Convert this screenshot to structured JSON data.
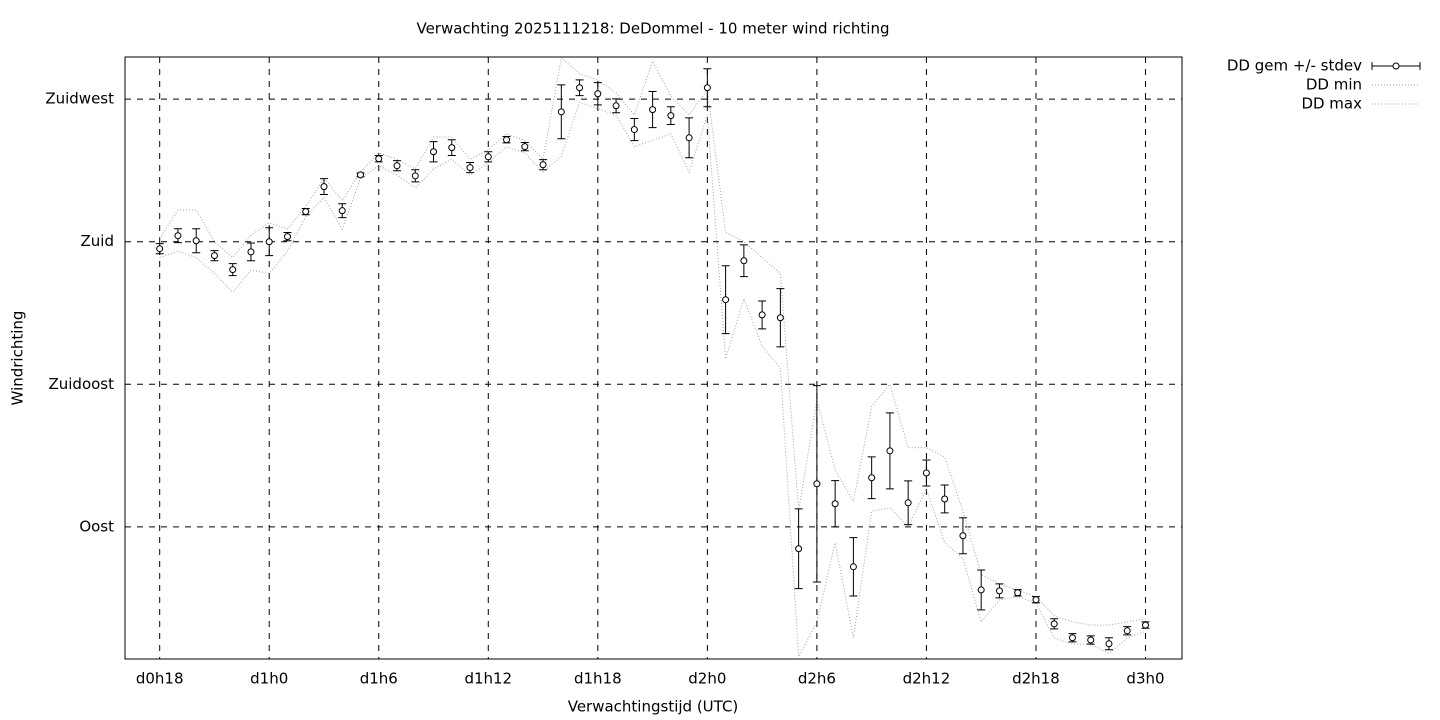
{
  "chart_data": {
    "type": "errorbar",
    "title": "Verwachting 2025111218: DeDommel - 10 meter wind richting",
    "x_label": "Verwachtingstijd (UTC)",
    "y_label": "Windrichting",
    "x": [
      18,
      19,
      20,
      21,
      22,
      23,
      24,
      25,
      26,
      27,
      28,
      29,
      30,
      31,
      32,
      33,
      34,
      35,
      36,
      37,
      38,
      39,
      40,
      41,
      42,
      43,
      44,
      45,
      46,
      47,
      48,
      49,
      50,
      51,
      52,
      53,
      54,
      55,
      56,
      57,
      58,
      59,
      60,
      61,
      62,
      63,
      64,
      65,
      66,
      67,
      68,
      69,
      70,
      71,
      72
    ],
    "xlim": [
      16.1,
      74.0
    ],
    "xticks": [
      {
        "value": 18,
        "label": "d0h18"
      },
      {
        "value": 24,
        "label": "d1h0"
      },
      {
        "value": 30,
        "label": "d1h6"
      },
      {
        "value": 36,
        "label": "d1h12"
      },
      {
        "value": 42,
        "label": "d1h18"
      },
      {
        "value": 48,
        "label": "d2h0"
      },
      {
        "value": 54,
        "label": "d2h6"
      },
      {
        "value": 60,
        "label": "d2h12"
      },
      {
        "value": 66,
        "label": "d2h18"
      },
      {
        "value": 72,
        "label": "d3h0"
      }
    ],
    "ylim": [
      48.3,
      238.3
    ],
    "yticks": [
      {
        "value": 90,
        "label": "Oost"
      },
      {
        "value": 135,
        "label": "Zuidoost"
      },
      {
        "value": 180,
        "label": "Zuid"
      },
      {
        "value": 225,
        "label": "Zuidwest"
      }
    ],
    "grid": true,
    "series": [
      {
        "name": "DD gem +/- stdev",
        "color": "#000000",
        "values": [
          177.8,
          181.9,
          180.3,
          175.6,
          171.2,
          176.8,
          180,
          181.6,
          189.5,
          197.4,
          189.8,
          201.1,
          206.2,
          204,
          200.8,
          208.4,
          209.7,
          203.4,
          206.8,
          212.2,
          210,
          204.3,
          221,
          228.6,
          226.7,
          222.9,
          215.4,
          221.7,
          219.8,
          212.8,
          228.6,
          161.7,
          174,
          156.9,
          156,
          83.1,
          103.6,
          97.3,
          77.4,
          105.5,
          114,
          97.6,
          107,
          98.8,
          87.2,
          70.1,
          69.8,
          69.2,
          67,
          59.4,
          55,
          54.3,
          53.1,
          57.2,
          59
        ],
        "errors": [
          1.6,
          2.2,
          3.8,
          1.6,
          1.9,
          2.8,
          4.4,
          1.3,
          1,
          2.5,
          2.2,
          0.6,
          1,
          1.6,
          1.9,
          3.2,
          2.5,
          1.6,
          1.6,
          1,
          1.3,
          1.6,
          8.5,
          2.5,
          3.5,
          2.2,
          3.5,
          5.7,
          2.8,
          6.3,
          6,
          10.7,
          5,
          4.4,
          9.2,
          12.6,
          31,
          7.3,
          9.2,
          6.6,
          12,
          6.9,
          4.1,
          4.4,
          5.7,
          6.3,
          2.2,
          1,
          1,
          1.6,
          1.3,
          1.3,
          1.9,
          1.3,
          1
        ]
      },
      {
        "name": "DD min",
        "color": "#a0a0a0",
        "values": [
          175,
          177,
          175,
          170,
          164,
          171,
          170,
          177,
          188,
          194,
          184,
          200,
          204,
          201,
          197,
          203,
          206,
          201,
          205,
          210,
          208,
          202,
          207,
          224,
          222,
          220,
          210,
          212,
          214,
          202,
          220,
          143,
          162,
          147,
          140,
          49,
          60,
          85,
          55,
          95,
          96,
          90,
          102,
          85,
          80,
          60,
          67,
          68,
          66,
          55,
          53,
          53,
          50,
          55,
          57
        ]
      },
      {
        "name": "DD max",
        "color": "#a0a0a0",
        "values": [
          181,
          190,
          190,
          180,
          175,
          182,
          186,
          184,
          191,
          200,
          193,
          202,
          208,
          206,
          203,
          213,
          213,
          206,
          209,
          214,
          212,
          206,
          238,
          233,
          231,
          227,
          220,
          237,
          226,
          220,
          228,
          183,
          180,
          175,
          170,
          95,
          130,
          108,
          98,
          128,
          135,
          115,
          115,
          112,
          95,
          75,
          72,
          70,
          68,
          62,
          60,
          59,
          59,
          60,
          61
        ]
      }
    ]
  }
}
